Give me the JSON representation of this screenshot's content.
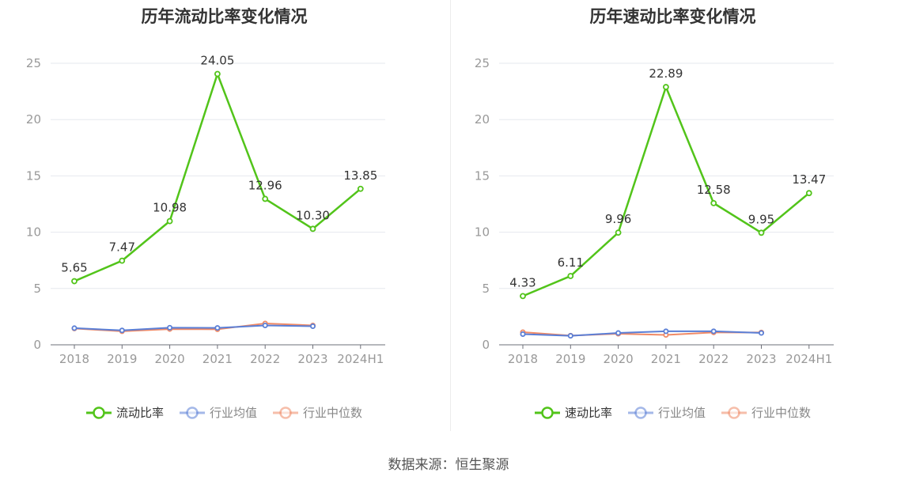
{
  "chart_data": [
    {
      "type": "line",
      "title": "历年流动比率变化情况",
      "categories": [
        "2018",
        "2019",
        "2020",
        "2021",
        "2022",
        "2023",
        "2024H1"
      ],
      "ylim": [
        0,
        25
      ],
      "yticks": [
        0,
        5,
        10,
        15,
        20,
        25
      ],
      "grid": true,
      "legend_position": "bottom",
      "series": [
        {
          "name": "流动比率",
          "color": "#52c41a",
          "values": [
            5.65,
            7.47,
            10.98,
            24.05,
            12.96,
            10.3,
            13.85
          ],
          "labels": [
            "5.65",
            "7.47",
            "10.98",
            "24.05",
            "12.96",
            "10.30",
            "13.85"
          ],
          "show_labels": true
        },
        {
          "name": "行业均值",
          "color": "#5b7fd6",
          "values": [
            1.48,
            1.28,
            1.52,
            1.5,
            1.72,
            1.65,
            null
          ],
          "show_labels": false
        },
        {
          "name": "行业中位数",
          "color": "#f08a66",
          "values": [
            1.45,
            1.2,
            1.4,
            1.38,
            1.9,
            1.72,
            null
          ],
          "show_labels": false
        }
      ]
    },
    {
      "type": "line",
      "title": "历年速动比率变化情况",
      "categories": [
        "2018",
        "2019",
        "2020",
        "2021",
        "2022",
        "2023",
        "2024H1"
      ],
      "ylim": [
        0,
        25
      ],
      "yticks": [
        0,
        5,
        10,
        15,
        20,
        25
      ],
      "grid": true,
      "legend_position": "bottom",
      "series": [
        {
          "name": "速动比率",
          "color": "#52c41a",
          "values": [
            4.33,
            6.11,
            9.96,
            22.89,
            12.58,
            9.95,
            13.47
          ],
          "labels": [
            "4.33",
            "6.11",
            "9.96",
            "22.89",
            "12.58",
            "9.95",
            "13.47"
          ],
          "show_labels": true
        },
        {
          "name": "行业均值",
          "color": "#5b7fd6",
          "values": [
            0.95,
            0.8,
            1.05,
            1.2,
            1.2,
            1.05,
            null
          ],
          "show_labels": false
        },
        {
          "name": "行业中位数",
          "color": "#f08a66",
          "values": [
            1.12,
            0.82,
            0.98,
            0.88,
            1.1,
            1.1,
            null
          ],
          "show_labels": false
        }
      ]
    }
  ],
  "source_text": "数据来源：恒生聚源",
  "legend_icon": "circle-line-marker"
}
